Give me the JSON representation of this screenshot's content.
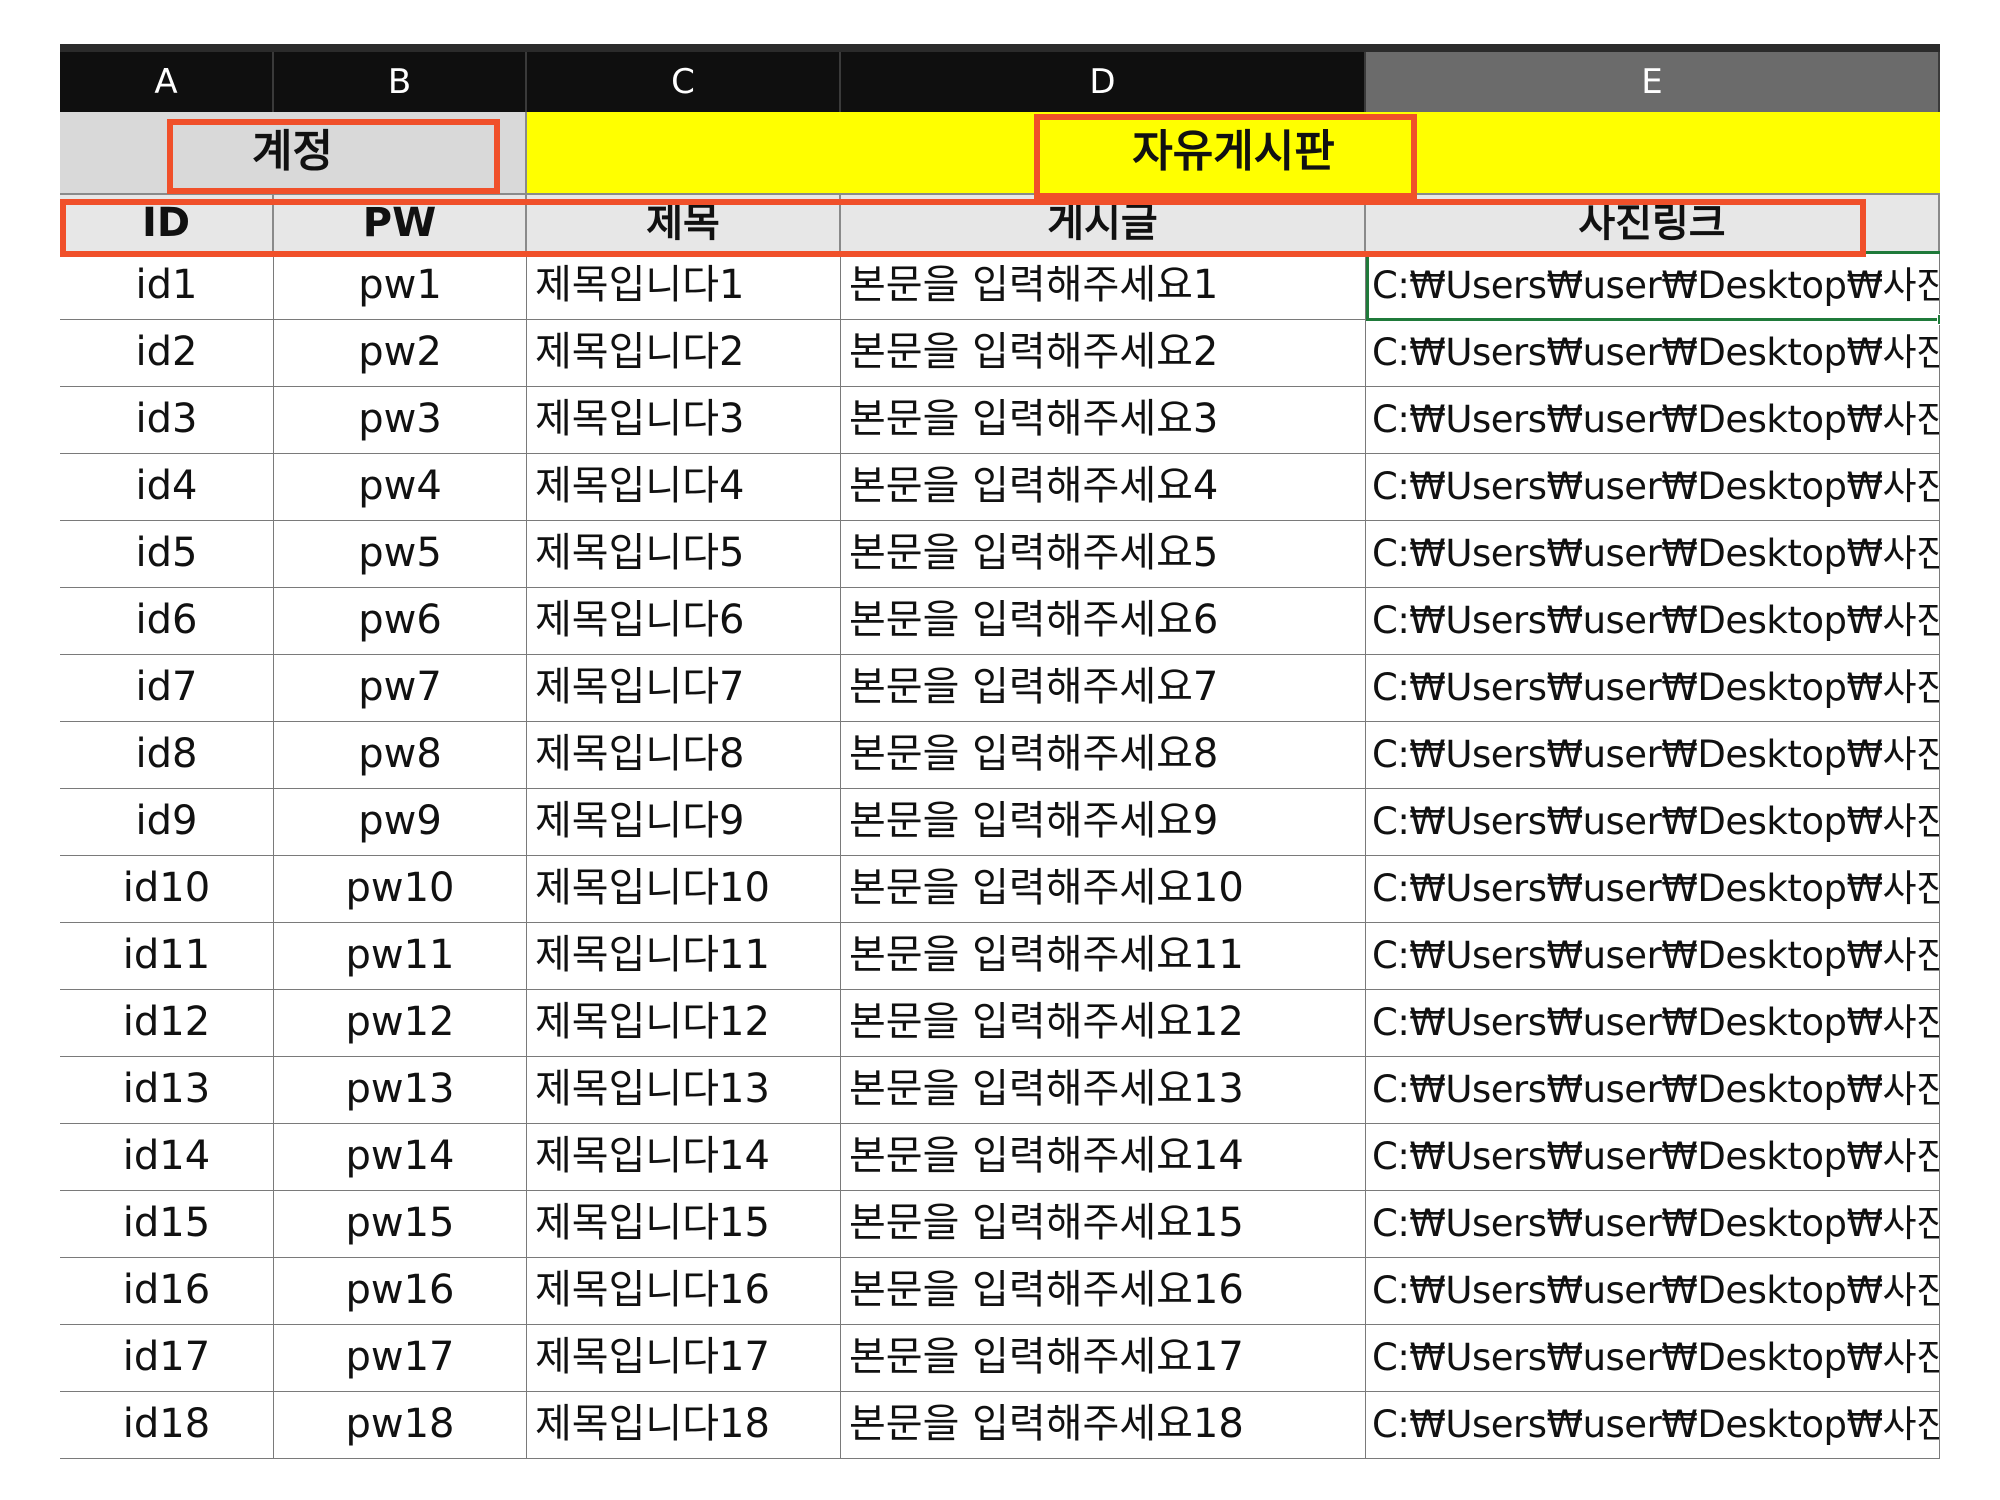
{
  "columns": [
    "A",
    "B",
    "C",
    "D",
    "E"
  ],
  "groups": {
    "account": "계정",
    "board": "자유게시판"
  },
  "headers": {
    "id": "ID",
    "pw": "PW",
    "title": "제목",
    "post": "게시글",
    "photo_link": "사진링크"
  },
  "rows": [
    {
      "id": "id1",
      "pw": "pw1",
      "title": "제목입니다1",
      "post": "본문을 입력해주세요1",
      "link": "C:₩Users₩user₩Desktop₩사진"
    },
    {
      "id": "id2",
      "pw": "pw2",
      "title": "제목입니다2",
      "post": "본문을 입력해주세요2",
      "link": "C:₩Users₩user₩Desktop₩사진"
    },
    {
      "id": "id3",
      "pw": "pw3",
      "title": "제목입니다3",
      "post": "본문을 입력해주세요3",
      "link": "C:₩Users₩user₩Desktop₩사진"
    },
    {
      "id": "id4",
      "pw": "pw4",
      "title": "제목입니다4",
      "post": "본문을 입력해주세요4",
      "link": "C:₩Users₩user₩Desktop₩사진"
    },
    {
      "id": "id5",
      "pw": "pw5",
      "title": "제목입니다5",
      "post": "본문을 입력해주세요5",
      "link": "C:₩Users₩user₩Desktop₩사진"
    },
    {
      "id": "id6",
      "pw": "pw6",
      "title": "제목입니다6",
      "post": "본문을 입력해주세요6",
      "link": "C:₩Users₩user₩Desktop₩사진"
    },
    {
      "id": "id7",
      "pw": "pw7",
      "title": "제목입니다7",
      "post": "본문을 입력해주세요7",
      "link": "C:₩Users₩user₩Desktop₩사진"
    },
    {
      "id": "id8",
      "pw": "pw8",
      "title": "제목입니다8",
      "post": "본문을 입력해주세요8",
      "link": "C:₩Users₩user₩Desktop₩사진"
    },
    {
      "id": "id9",
      "pw": "pw9",
      "title": "제목입니다9",
      "post": "본문을 입력해주세요9",
      "link": "C:₩Users₩user₩Desktop₩사진"
    },
    {
      "id": "id10",
      "pw": "pw10",
      "title": "제목입니다10",
      "post": "본문을 입력해주세요10",
      "link": "C:₩Users₩user₩Desktop₩사진"
    },
    {
      "id": "id11",
      "pw": "pw11",
      "title": "제목입니다11",
      "post": "본문을 입력해주세요11",
      "link": "C:₩Users₩user₩Desktop₩사진"
    },
    {
      "id": "id12",
      "pw": "pw12",
      "title": "제목입니다12",
      "post": "본문을 입력해주세요12",
      "link": "C:₩Users₩user₩Desktop₩사진"
    },
    {
      "id": "id13",
      "pw": "pw13",
      "title": "제목입니다13",
      "post": "본문을 입력해주세요13",
      "link": "C:₩Users₩user₩Desktop₩사진"
    },
    {
      "id": "id14",
      "pw": "pw14",
      "title": "제목입니다14",
      "post": "본문을 입력해주세요14",
      "link": "C:₩Users₩user₩Desktop₩사진"
    },
    {
      "id": "id15",
      "pw": "pw15",
      "title": "제목입니다15",
      "post": "본문을 입력해주세요15",
      "link": "C:₩Users₩user₩Desktop₩사진"
    },
    {
      "id": "id16",
      "pw": "pw16",
      "title": "제목입니다16",
      "post": "본문을 입력해주세요16",
      "link": "C:₩Users₩user₩Desktop₩사진"
    },
    {
      "id": "id17",
      "pw": "pw17",
      "title": "제목입니다17",
      "post": "본문을 입력해주세요17",
      "link": "C:₩Users₩user₩Desktop₩사진"
    },
    {
      "id": "id18",
      "pw": "pw18",
      "title": "제목입니다18",
      "post": "본문을 입력해주세요18",
      "link": "C:₩Users₩user₩Desktop₩사진"
    }
  ],
  "colors": {
    "header_fill": "#d9d9d9",
    "board_fill": "#ffff00",
    "annotation": "#f0502a",
    "selection": "#1f7a3a"
  }
}
